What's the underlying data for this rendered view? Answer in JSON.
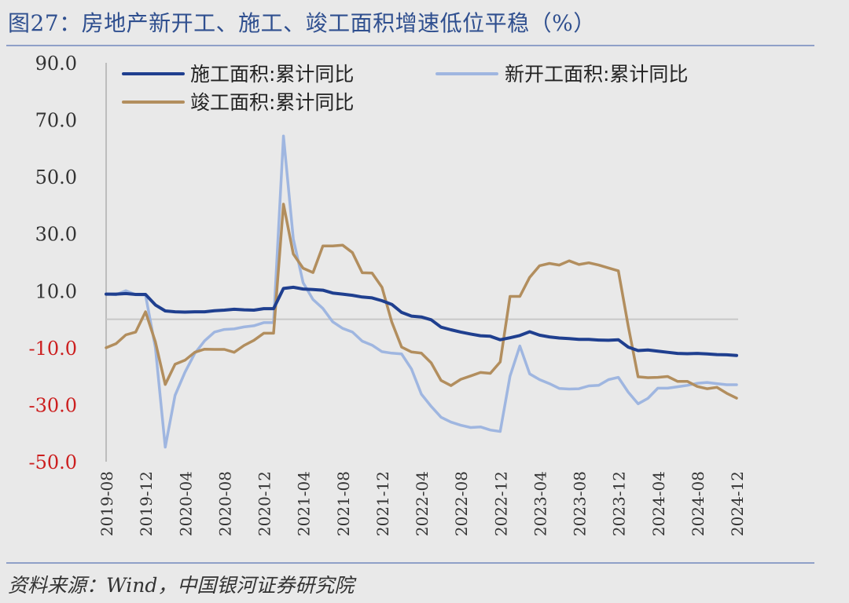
{
  "figure": {
    "title": "图27：房地产新开工、施工、竣工面积增速低位平稳（%）",
    "source": "资料来源：Wind，中国银河证券研究院"
  },
  "chart_data": {
    "type": "line",
    "title": "图27：房地产新开工、施工、竣工面积增速低位平稳（%）",
    "xlabel": "",
    "ylabel": "",
    "ylim": [
      -50,
      90
    ],
    "yticks": [
      90,
      70,
      50,
      30,
      10,
      -10,
      -30,
      -50
    ],
    "ytick_labels": [
      "90.0",
      "70.0",
      "50.0",
      "30.0",
      "10.0",
      "-10.0",
      "-30.0",
      "-50.0"
    ],
    "negative_tick_color": "#cc1f1f",
    "xtick_labels": [
      "2019-08",
      "2019-12",
      "2020-04",
      "2020-08",
      "2020-12",
      "2021-04",
      "2021-08",
      "2021-12",
      "2022-04",
      "2022-08",
      "2022-12",
      "2023-04",
      "2023-08",
      "2023-12",
      "2024-04",
      "2024-08",
      "2024-12"
    ],
    "x_months": [
      "2019-08",
      "2019-09",
      "2019-10",
      "2019-11",
      "2019-12",
      "2020-01",
      "2020-02",
      "2020-03",
      "2020-04",
      "2020-05",
      "2020-06",
      "2020-07",
      "2020-08",
      "2020-09",
      "2020-10",
      "2020-11",
      "2020-12",
      "2021-01",
      "2021-02",
      "2021-03",
      "2021-04",
      "2021-05",
      "2021-06",
      "2021-07",
      "2021-08",
      "2021-09",
      "2021-10",
      "2021-11",
      "2021-12",
      "2022-01",
      "2022-02",
      "2022-03",
      "2022-04",
      "2022-05",
      "2022-06",
      "2022-07",
      "2022-08",
      "2022-09",
      "2022-10",
      "2022-11",
      "2022-12",
      "2023-01",
      "2023-02",
      "2023-03",
      "2023-04",
      "2023-05",
      "2023-06",
      "2023-07",
      "2023-08",
      "2023-09",
      "2023-10",
      "2023-11",
      "2023-12",
      "2024-01",
      "2024-02",
      "2024-03",
      "2024-04",
      "2024-05",
      "2024-06",
      "2024-07",
      "2024-08",
      "2024-09",
      "2024-10",
      "2024-11",
      "2024-12"
    ],
    "zero_line": 0,
    "legend_position": "top",
    "grid": false,
    "series": [
      {
        "name": "施工面积:累计同比",
        "color": "#1f3f8f",
        "values": [
          8.8,
          8.8,
          9.0,
          8.7,
          8.7,
          5.0,
          2.9,
          2.6,
          2.5,
          2.6,
          2.6,
          3.0,
          3.2,
          3.5,
          3.3,
          3.2,
          3.7,
          3.7,
          10.8,
          11.2,
          10.6,
          10.4,
          10.2,
          9.2,
          8.8,
          8.4,
          7.8,
          7.5,
          6.5,
          5.2,
          2.4,
          1.1,
          0.8,
          -0.2,
          -2.8,
          -3.7,
          -4.5,
          -5.2,
          -5.8,
          -6.0,
          -7.2,
          -6.5,
          -5.7,
          -4.4,
          -5.6,
          -6.2,
          -6.6,
          -6.8,
          -7.1,
          -7.1,
          -7.3,
          -7.4,
          -7.2,
          -9.8,
          -11.0,
          -10.8,
          -11.2,
          -11.6,
          -12.0,
          -12.1,
          -12.0,
          -12.2,
          -12.4,
          -12.5,
          -12.7
        ]
      },
      {
        "name": "新开工面积:累计同比",
        "color": "#9fb6e0",
        "values": [
          8.9,
          8.6,
          10.0,
          8.6,
          8.5,
          -10.0,
          -44.9,
          -26.7,
          -18.6,
          -12.0,
          -7.6,
          -4.5,
          -3.6,
          -3.4,
          -2.7,
          -2.3,
          -1.2,
          -1.2,
          64.3,
          28.2,
          12.8,
          6.9,
          3.8,
          -0.9,
          -3.2,
          -4.5,
          -7.7,
          -9.1,
          -11.4,
          -11.9,
          -12.2,
          -17.5,
          -26.3,
          -30.6,
          -34.4,
          -36.1,
          -37.2,
          -38.0,
          -37.8,
          -38.9,
          -39.4,
          -20.0,
          -9.4,
          -19.2,
          -21.2,
          -22.6,
          -24.3,
          -24.5,
          -24.4,
          -23.4,
          -23.2,
          -21.2,
          -20.4,
          -25.6,
          -29.7,
          -27.8,
          -24.2,
          -24.2,
          -23.7,
          -23.2,
          -22.5,
          -22.2,
          -22.6,
          -23.0,
          -23.0
        ]
      },
      {
        "name": "竣工面积:累计同比",
        "color": "#b28e5e",
        "values": [
          -10.0,
          -8.6,
          -5.5,
          -4.5,
          2.6,
          -8.0,
          -22.9,
          -15.8,
          -14.4,
          -11.6,
          -10.5,
          -10.6,
          -10.6,
          -11.6,
          -9.2,
          -7.4,
          -4.9,
          -4.9,
          40.4,
          22.9,
          17.9,
          16.4,
          25.7,
          25.7,
          26.0,
          23.4,
          16.3,
          16.2,
          11.2,
          -1.0,
          -9.8,
          -11.5,
          -11.9,
          -15.3,
          -21.5,
          -23.3,
          -21.1,
          -19.9,
          -18.7,
          -19.0,
          -15.0,
          8.0,
          8.0,
          14.7,
          18.8,
          19.6,
          19.0,
          20.5,
          19.2,
          19.8,
          19.0,
          18.0,
          17.0,
          -2.5,
          -20.2,
          -20.5,
          -20.4,
          -20.1,
          -21.8,
          -21.8,
          -23.6,
          -24.4,
          -23.9,
          -26.0,
          -27.7
        ]
      }
    ]
  }
}
